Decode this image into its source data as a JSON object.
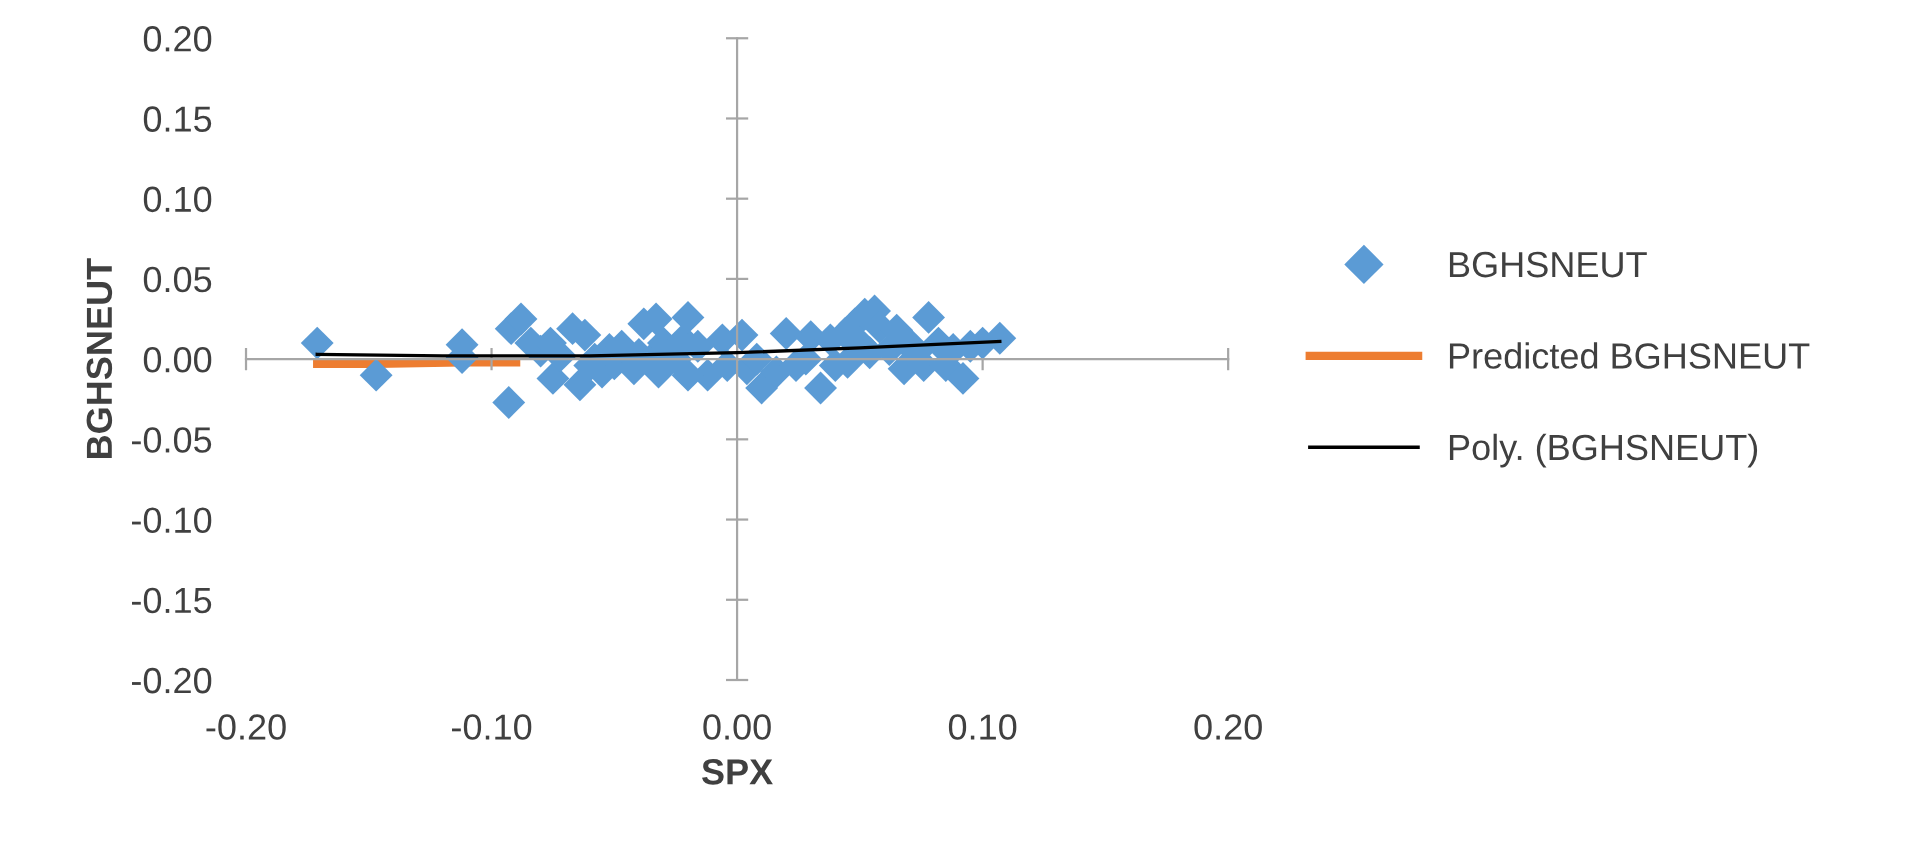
{
  "chart_data": {
    "type": "scatter",
    "xlabel": "SPX",
    "ylabel": "BGHSNEUT",
    "xlim": [
      -0.2,
      0.2
    ],
    "ylim": [
      -0.2,
      0.2
    ],
    "xticks": [
      {
        "value": -0.2,
        "label": "-0.20"
      },
      {
        "value": -0.1,
        "label": "-0.10"
      },
      {
        "value": 0,
        "label": "0.00"
      },
      {
        "value": 0.1,
        "label": "0.10"
      },
      {
        "value": 0.2,
        "label": "0.20"
      }
    ],
    "yticks": [
      {
        "value": 0.2,
        "label": "0.20"
      },
      {
        "value": 0.15,
        "label": "0.15"
      },
      {
        "value": 0.1,
        "label": "0.10"
      },
      {
        "value": 0.05,
        "label": "0.05"
      },
      {
        "value": 0,
        "label": "0.00"
      },
      {
        "value": -0.05,
        "label": "-0.05"
      },
      {
        "value": -0.1,
        "label": "-0.10"
      },
      {
        "value": -0.15,
        "label": "-0.15"
      },
      {
        "value": -0.2,
        "label": "-0.20"
      }
    ],
    "legend": "right",
    "marker": "diamond",
    "series": [
      {
        "name": "BGHSNEUT",
        "color": "#5b9bd5",
        "x": [
          -0.171,
          -0.147,
          -0.112,
          -0.112,
          -0.093,
          -0.092,
          -0.088,
          -0.084,
          -0.08,
          -0.076,
          -0.075,
          -0.072,
          -0.067,
          -0.064,
          -0.062,
          -0.058,
          -0.055,
          -0.052,
          -0.05,
          -0.047,
          -0.042,
          -0.04,
          -0.038,
          -0.035,
          -0.033,
          -0.032,
          -0.03,
          -0.025,
          -0.022,
          -0.02,
          -0.016,
          -0.012,
          -0.006,
          -0.004,
          0.002,
          0.004,
          0.008,
          0.01,
          0.016,
          0.02,
          0.024,
          0.028,
          0.03,
          0.034,
          0.038,
          0.04,
          0.044,
          0.048,
          0.05,
          0.052,
          0.054,
          0.056,
          0.058,
          0.062,
          0.065,
          0.068,
          0.07,
          0.073,
          0.076,
          0.078,
          0.082,
          0.085,
          0.088,
          0.092,
          0.095,
          0.1,
          0.107,
          -0.02,
          -0.06,
          0.045
        ],
        "values": [
          0.01,
          -0.01,
          0.009,
          0.001,
          -0.027,
          0.019,
          0.025,
          0.01,
          0.005,
          0.01,
          -0.012,
          0.002,
          0.019,
          -0.016,
          0.015,
          0.0,
          -0.008,
          0.006,
          -0.003,
          0.008,
          -0.006,
          0.003,
          0.022,
          0.0,
          0.025,
          -0.008,
          0.01,
          0.0,
          0.012,
          0.026,
          0.008,
          -0.01,
          0.012,
          -0.004,
          0.015,
          -0.006,
          0.0,
          -0.018,
          -0.008,
          0.016,
          -0.004,
          0.0,
          0.014,
          -0.018,
          0.012,
          -0.004,
          0.016,
          0.022,
          0.01,
          0.028,
          0.004,
          0.03,
          0.02,
          0.006,
          0.018,
          -0.006,
          0.01,
          0.004,
          -0.004,
          0.026,
          0.01,
          -0.004,
          0.006,
          -0.012,
          0.008,
          0.01,
          0.013,
          -0.01,
          -0.004,
          -0.002
        ]
      },
      {
        "name": "Predicted BGHSNEUT",
        "type": "line",
        "color": "#ed7d31",
        "marker": "none",
        "x": [
          -0.171,
          -0.147,
          -0.112,
          -0.09
        ],
        "values": [
          -0.003,
          -0.003,
          -0.002,
          -0.002
        ]
      },
      {
        "name": "Poly. (BGHSNEUT)",
        "type": "line",
        "color": "#000000",
        "marker": "none",
        "x": [
          -0.171,
          -0.12,
          -0.06,
          0.0,
          0.05,
          0.107
        ],
        "values": [
          0.003,
          0.002,
          0.002,
          0.004,
          0.007,
          0.011
        ]
      }
    ]
  }
}
